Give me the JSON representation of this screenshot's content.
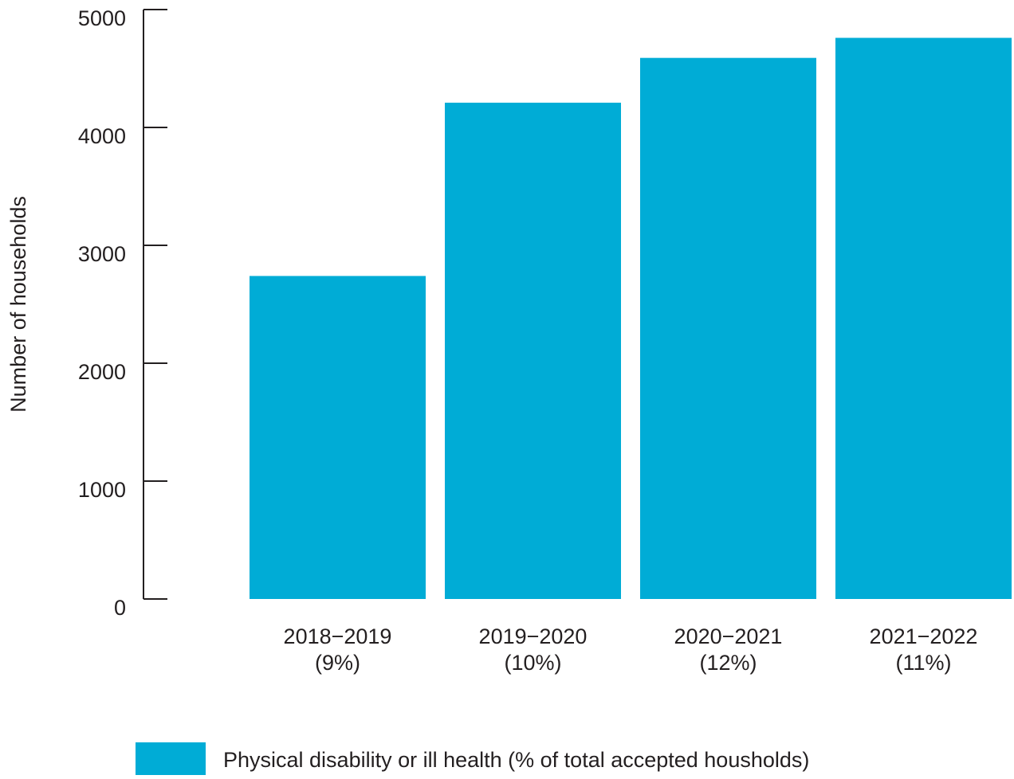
{
  "chart_data": {
    "type": "bar",
    "title": "",
    "xlabel": "",
    "ylabel": "Number of households",
    "ylim": [
      0,
      5000
    ],
    "yticks": [
      0,
      1000,
      2000,
      3000,
      4000,
      5000
    ],
    "ytick_labels": [
      "0",
      "1000",
      "2000",
      "3000",
      "4000",
      "5000"
    ],
    "categories": [
      "2018−2019",
      "2019−2020",
      "2020−2021",
      "2021−2022"
    ],
    "category_sublabels": [
      "(9%)",
      "(10%)",
      "(12%)",
      "(11%)"
    ],
    "series": [
      {
        "name": "Physical disability or ill health (% of total accepted housholds)",
        "color": "#00acd6",
        "values": [
          2740,
          4210,
          4590,
          4760
        ]
      }
    ],
    "grid": false,
    "legend_position": "bottom-left"
  }
}
